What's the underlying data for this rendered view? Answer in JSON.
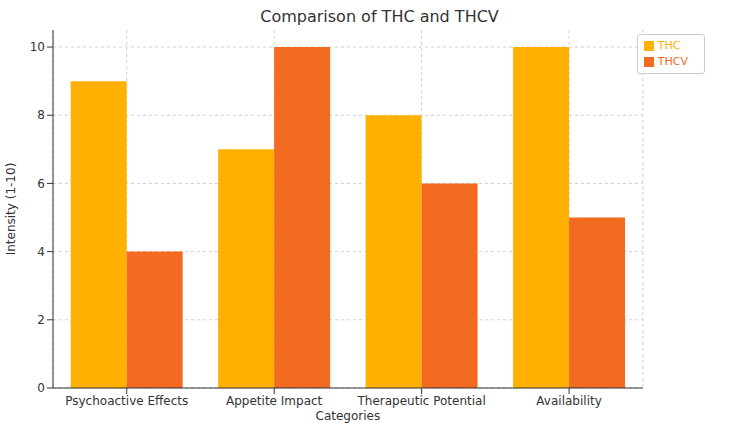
{
  "chart_data": {
    "type": "bar",
    "title": "Comparison of THC and THCV",
    "x_label": "Categories",
    "y_label": "Intensity (1-10)",
    "categories": [
      "Psychoactive Effects",
      "Appetite Impact",
      "Therapeutic Potential",
      "Availability"
    ],
    "series": [
      {
        "name": "THC",
        "color": "#ffb000",
        "values": [
          9,
          7,
          8,
          10
        ]
      },
      {
        "name": "THCV",
        "color": "#f26b21",
        "values": [
          4,
          10,
          6,
          5
        ]
      }
    ],
    "ylim": [
      0,
      10.5
    ],
    "yticks": [
      0,
      2,
      4,
      6,
      8,
      10
    ],
    "grid": true,
    "legend": "upper right"
  }
}
